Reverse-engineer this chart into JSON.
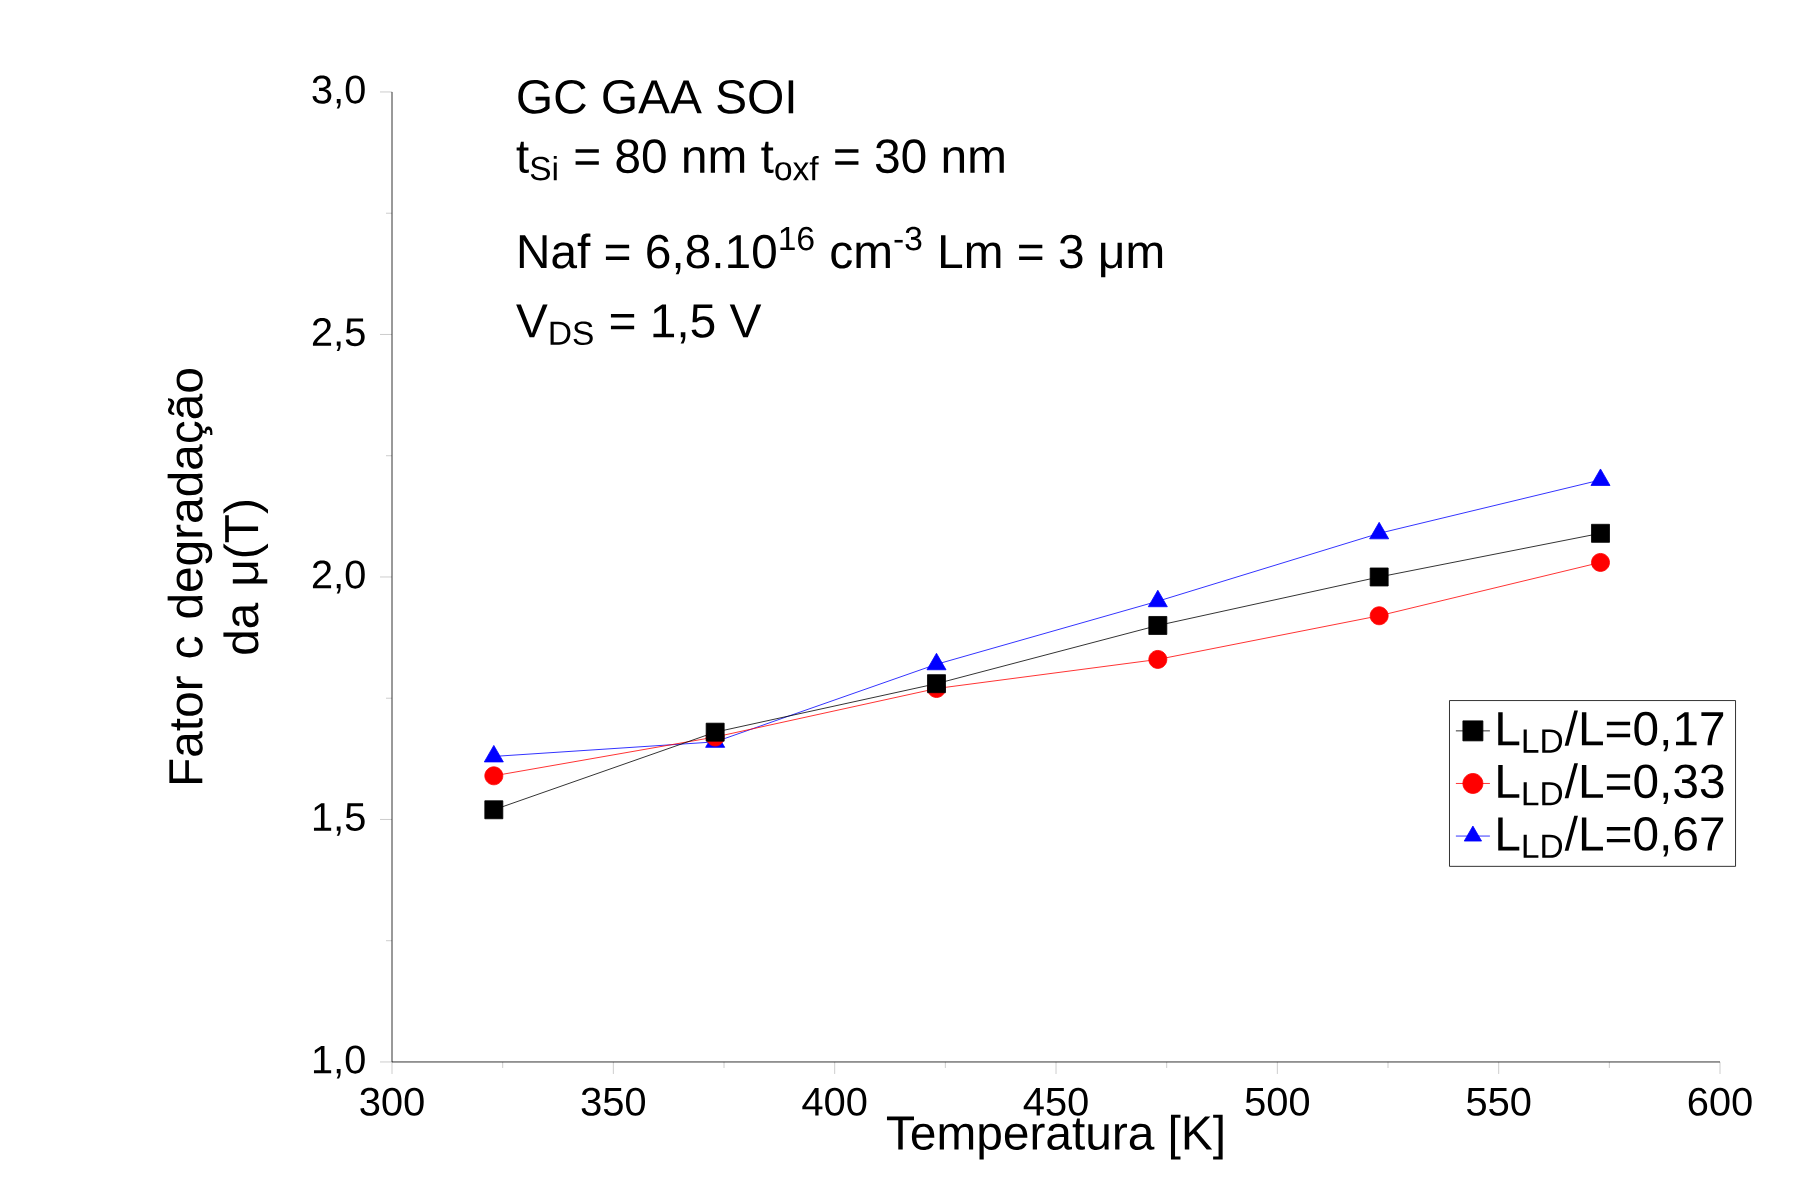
{
  "chart_data": {
    "type": "line",
    "xlabel": "Temperatura [K]",
    "ylabel": "Fator c degradação da μ(T)",
    "annotations": [
      "GC GAA SOI",
      "t$_{Si}$ = 80 nm  t$_{oxf}$ = 30 nm",
      "Naf = 6,8.10$^{16}$ cm$^{-3}$   Lm = 3 μm",
      "V$_{DS}$ = 1,5 V"
    ],
    "x": [
      323,
      373,
      423,
      473,
      523,
      573
    ],
    "series": [
      {
        "name": "L$_{LD}$/L=0,17",
        "color": "#000000",
        "marker": "square",
        "values": [
          1.52,
          1.68,
          1.78,
          1.9,
          2.0,
          2.09
        ]
      },
      {
        "name": "L$_{LD}$/L=0,33",
        "color": "#ff0000",
        "marker": "circle",
        "values": [
          1.59,
          1.67,
          1.77,
          1.83,
          1.92,
          2.03
        ]
      },
      {
        "name": "L$_{LD}$/L=0,67",
        "color": "#0000ff",
        "marker": "triangle",
        "values": [
          1.63,
          1.66,
          1.82,
          1.95,
          2.09,
          2.2
        ]
      }
    ],
    "xlim": [
      300,
      600
    ],
    "xticks": [
      300,
      350,
      400,
      450,
      500,
      550,
      600
    ],
    "ylim": [
      1.0,
      3.0
    ],
    "yticks": [
      {
        "value": 1.0,
        "label": "1,0"
      },
      {
        "value": 1.5,
        "label": "1,5"
      },
      {
        "value": 2.0,
        "label": "2,0"
      },
      {
        "value": 2.5,
        "label": "2,5"
      },
      {
        "value": 3.0,
        "label": "3,0"
      }
    ],
    "legend": "right",
    "grid": false,
    "line_style": "solid"
  }
}
